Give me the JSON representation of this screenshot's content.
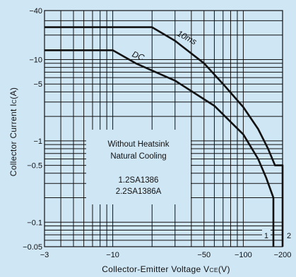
{
  "chart_data": {
    "type": "line",
    "xlabel": "Collector-Emitter Voltage V",
    "xlabel_sub": "CE",
    "xlabel_unit": "(V)",
    "ylabel": "Collector Current I",
    "ylabel_sub": "C",
    "ylabel_unit": "(A)",
    "x_scale": "log",
    "y_scale": "log",
    "xlim": [
      -3,
      -200
    ],
    "ylim": [
      -0.05,
      -40
    ],
    "grid": true,
    "x_ticks": [
      {
        "value": -3,
        "label": "−3"
      },
      {
        "value": -10,
        "label": "−10"
      },
      {
        "value": -50,
        "label": "−50"
      },
      {
        "value": -100,
        "label": "−100"
      },
      {
        "value": -200,
        "label": "−200"
      }
    ],
    "y_ticks": [
      {
        "value": -40,
        "label": "−40"
      },
      {
        "value": -10,
        "label": "−10"
      },
      {
        "value": -5,
        "label": "−5"
      },
      {
        "value": -1,
        "label": "−1"
      },
      {
        "value": -0.5,
        "label": "−0.5"
      },
      {
        "value": -0.1,
        "label": "−0.1"
      },
      {
        "value": -0.05,
        "label": "−0.05"
      }
    ],
    "series": [
      {
        "name": "10ms",
        "points": [
          {
            "x": -3,
            "y": -25
          },
          {
            "x": -20,
            "y": -25
          },
          {
            "x": -30,
            "y": -17
          },
          {
            "x": -50,
            "y": -9
          },
          {
            "x": -70,
            "y": -5
          },
          {
            "x": -100,
            "y": -2.6
          },
          {
            "x": -130,
            "y": -1.4
          },
          {
            "x": -155,
            "y": -0.8
          },
          {
            "x": -175,
            "y": -0.5
          },
          {
            "x": -200,
            "y": -0.5
          },
          {
            "x": -200,
            "y": -0.05
          }
        ]
      },
      {
        "name": "DC",
        "points": [
          {
            "x": -3,
            "y": -13
          },
          {
            "x": -10,
            "y": -13
          },
          {
            "x": -15,
            "y": -9
          },
          {
            "x": -30,
            "y": -5.5
          },
          {
            "x": -60,
            "y": -2.7
          },
          {
            "x": -100,
            "y": -1.2
          },
          {
            "x": -130,
            "y": -0.6
          },
          {
            "x": -150,
            "y": -0.35
          },
          {
            "x": -170,
            "y": -0.2
          },
          {
            "x": -170,
            "y": -0.05
          }
        ]
      }
    ],
    "end_labels": [
      "1",
      "2"
    ],
    "note_lines": [
      "Without Heatsink",
      "Natural Cooling",
      "",
      "1.2SA1386",
      "2.2SA1386A"
    ]
  }
}
